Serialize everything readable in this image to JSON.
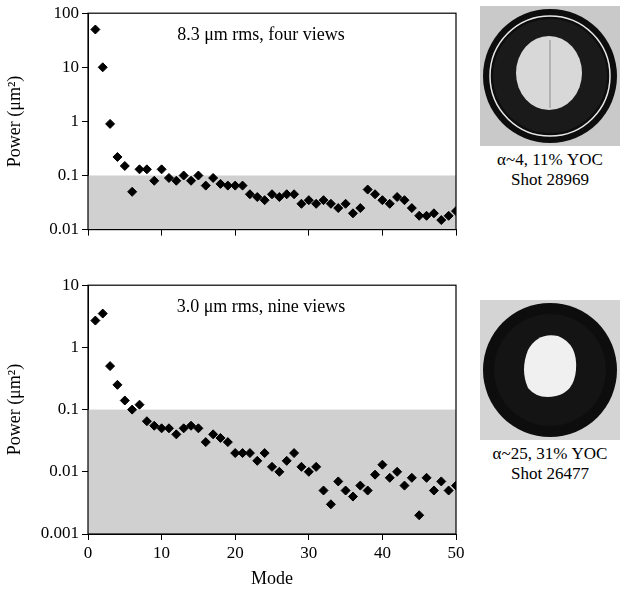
{
  "chart_data": [
    {
      "type": "scatter",
      "annotation": "8.3 μm rms, four views",
      "y_label": "Power (μm²)",
      "x": [
        1,
        2,
        3,
        4,
        5,
        6,
        7,
        8,
        9,
        10,
        11,
        12,
        13,
        14,
        15,
        16,
        17,
        18,
        19,
        20,
        21,
        22,
        23,
        24,
        25,
        26,
        27,
        28,
        29,
        30,
        31,
        32,
        33,
        34,
        35,
        36,
        37,
        38,
        39,
        40,
        41,
        42,
        43,
        44,
        45,
        46,
        47,
        48,
        49,
        50
      ],
      "values": [
        50,
        10,
        0.9,
        0.22,
        0.15,
        0.05,
        0.13,
        0.13,
        0.08,
        0.13,
        0.09,
        0.08,
        0.1,
        0.08,
        0.1,
        0.065,
        0.09,
        0.07,
        0.065,
        0.065,
        0.065,
        0.045,
        0.04,
        0.035,
        0.045,
        0.04,
        0.045,
        0.045,
        0.03,
        0.035,
        0.03,
        0.035,
        0.03,
        0.025,
        0.03,
        0.02,
        0.025,
        0.055,
        0.045,
        0.035,
        0.03,
        0.04,
        0.035,
        0.025,
        0.018,
        0.018,
        0.02,
        0.015,
        0.018,
        0.022
      ],
      "xlim": [
        0,
        50
      ],
      "xticks": [
        0,
        10,
        20,
        30,
        40,
        50
      ],
      "ylim": [
        0.01,
        100
      ],
      "yticks": [
        0.01,
        0.1,
        1,
        10,
        100
      ],
      "log": "y",
      "tick_labels": "y",
      "grid": false,
      "color": "#000000",
      "marker": "diamond",
      "shaded_below": 0.1
    },
    {
      "type": "scatter",
      "annotation": "3.0 μm rms, nine views",
      "y_label": "Power (μm²)",
      "x_label": "Mode",
      "x": [
        1,
        2,
        3,
        4,
        5,
        6,
        7,
        8,
        9,
        10,
        11,
        12,
        13,
        14,
        15,
        16,
        17,
        18,
        19,
        20,
        21,
        22,
        23,
        24,
        25,
        26,
        27,
        28,
        29,
        30,
        31,
        32,
        33,
        34,
        35,
        36,
        37,
        38,
        39,
        40,
        41,
        42,
        43,
        44,
        45,
        46,
        47,
        48,
        49,
        50
      ],
      "values": [
        2.7,
        3.5,
        0.5,
        0.25,
        0.14,
        0.1,
        0.12,
        0.065,
        0.055,
        0.05,
        0.05,
        0.04,
        0.05,
        0.055,
        0.05,
        0.03,
        0.04,
        0.035,
        0.03,
        0.02,
        0.02,
        0.02,
        0.015,
        0.02,
        0.012,
        0.01,
        0.015,
        0.02,
        0.012,
        0.01,
        0.012,
        0.005,
        0.003,
        0.007,
        0.005,
        0.004,
        0.006,
        0.005,
        0.009,
        0.013,
        0.008,
        0.01,
        0.006,
        0.008,
        0.002,
        0.008,
        0.005,
        0.007,
        0.005,
        0.006
      ],
      "xlim": [
        0,
        50
      ],
      "xticks": [
        0,
        10,
        20,
        30,
        40,
        50
      ],
      "ylim": [
        0.001,
        10
      ],
      "yticks": [
        0.001,
        0.01,
        0.1,
        1,
        10
      ],
      "log": "y",
      "grid": false,
      "color": "#000000",
      "marker": "diamond",
      "shaded_below": 0.1
    }
  ],
  "images": [
    {
      "caption": [
        "α~4, 11% YOC",
        "Shot 28969"
      ]
    },
    {
      "caption": [
        "α~25, 31% YOC",
        "Shot 26477"
      ]
    }
  ]
}
